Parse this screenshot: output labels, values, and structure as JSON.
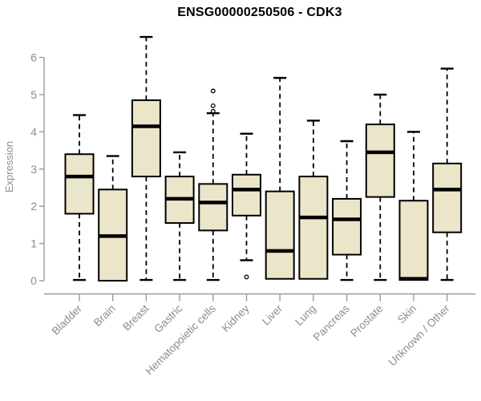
{
  "chart_data": {
    "type": "boxplot",
    "title": "ENSG00000250506 - CDK3",
    "ylabel": "Expression",
    "xlabel": "",
    "ylim": [
      0,
      6
    ],
    "yticks": [
      0,
      1,
      2,
      3,
      4,
      5,
      6
    ],
    "grid": false,
    "legend": "none",
    "categories": [
      "Bladder",
      "Brain",
      "Breast",
      "Gastric",
      "Hematopoietic cells",
      "Kidney",
      "Liver",
      "Lung",
      "Pancreas",
      "Prostate",
      "Skin",
      "Unknown / Other"
    ],
    "series": [
      {
        "name": "Bladder",
        "lo": 0.02,
        "q1": 1.8,
        "median": 2.8,
        "q3": 3.4,
        "hi": 4.45,
        "outliers": []
      },
      {
        "name": "Brain",
        "lo": 0.0,
        "q1": 0.0,
        "median": 1.2,
        "q3": 2.45,
        "hi": 3.35,
        "outliers": []
      },
      {
        "name": "Breast",
        "lo": 0.02,
        "q1": 2.8,
        "median": 4.15,
        "q3": 4.85,
        "hi": 6.55,
        "outliers": []
      },
      {
        "name": "Gastric",
        "lo": 0.02,
        "q1": 1.55,
        "median": 2.2,
        "q3": 2.8,
        "hi": 3.45,
        "outliers": []
      },
      {
        "name": "Hematopoietic cells",
        "lo": 0.02,
        "q1": 1.35,
        "median": 2.1,
        "q3": 2.6,
        "hi": 4.5,
        "outliers": [
          4.55,
          4.7,
          5.1
        ]
      },
      {
        "name": "Kidney",
        "lo": 0.55,
        "q1": 1.75,
        "median": 2.45,
        "q3": 2.85,
        "hi": 3.95,
        "outliers": [
          0.1
        ]
      },
      {
        "name": "Liver",
        "lo": 0.02,
        "q1": 0.05,
        "median": 0.8,
        "q3": 2.4,
        "hi": 5.45,
        "outliers": []
      },
      {
        "name": "Lung",
        "lo": 0.02,
        "q1": 0.05,
        "median": 1.7,
        "q3": 2.8,
        "hi": 4.3,
        "outliers": []
      },
      {
        "name": "Pancreas",
        "lo": 0.02,
        "q1": 0.7,
        "median": 1.65,
        "q3": 2.2,
        "hi": 3.75,
        "outliers": []
      },
      {
        "name": "Prostate",
        "lo": 0.02,
        "q1": 2.25,
        "median": 3.45,
        "q3": 4.2,
        "hi": 5.0,
        "outliers": []
      },
      {
        "name": "Skin",
        "lo": 0.0,
        "q1": 0.02,
        "median": 0.05,
        "q3": 2.15,
        "hi": 4.0,
        "outliers": []
      },
      {
        "name": "Unknown / Other",
        "lo": 0.02,
        "q1": 1.3,
        "median": 2.45,
        "q3": 3.15,
        "hi": 5.7,
        "outliers": []
      }
    ],
    "colors": {
      "box_fill": "#ebe5c9",
      "box_border": "#000000",
      "median_line": "#000000",
      "whisker": "#000000",
      "axis": "#999999",
      "tick_labels": "#8c8c8c",
      "title": "#000000",
      "background": "#ffffff"
    }
  }
}
